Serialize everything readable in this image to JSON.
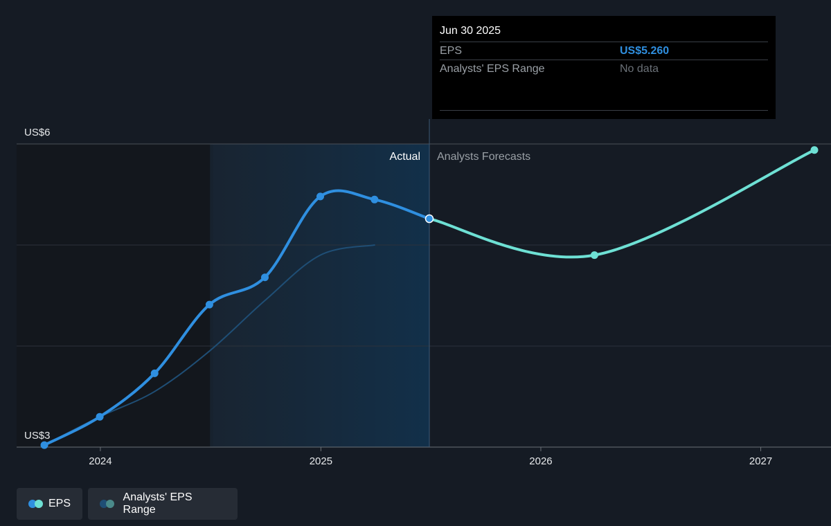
{
  "tooltip": {
    "date": "Jun 30 2025",
    "rows": [
      {
        "label": "EPS",
        "value": "US$5.260"
      },
      {
        "label": "Analysts' EPS Range",
        "value": "No data"
      }
    ]
  },
  "regions": {
    "actual_label": "Actual",
    "forecast_label": "Analysts Forecasts"
  },
  "legend": [
    {
      "label": "EPS",
      "colors": [
        "#2f8fe0",
        "#6ee0d4"
      ]
    },
    {
      "label": "Analysts' EPS Range",
      "colors": [
        "#1f4e75",
        "#4a8a8a"
      ]
    }
  ],
  "colors": {
    "eps_actual": "#2f8fe0",
    "eps_forecast": "#6ee0d4",
    "range_line": "#1f4e75",
    "background": "#151b24"
  },
  "chart_data": {
    "type": "line",
    "y_tick_labels": [
      "US$6",
      "US$3"
    ],
    "ylim": [
      3,
      6
    ],
    "xlim": [
      "2023-08-15",
      "2027-03-31"
    ],
    "x_tick_labels": [
      "2024",
      "2025",
      "2026",
      "2027"
    ],
    "x_ticks": [
      "2024-01-01",
      "2025-01-01",
      "2026-01-01",
      "2027-01-01"
    ],
    "grid": true,
    "highlight_from": "2024-07-01",
    "divider": "2025-06-30",
    "series": [
      {
        "name": "EPS",
        "style": "actual",
        "points": [
          {
            "x": "2023-09-30",
            "y": 3.02
          },
          {
            "x": "2023-12-31",
            "y": 3.3
          },
          {
            "x": "2024-03-31",
            "y": 3.73
          },
          {
            "x": "2024-06-30",
            "y": 4.41
          },
          {
            "x": "2024-09-30",
            "y": 4.68
          },
          {
            "x": "2024-12-31",
            "y": 5.48
          },
          {
            "x": "2025-03-31",
            "y": 5.45
          },
          {
            "x": "2025-06-30",
            "y": 5.26
          }
        ]
      },
      {
        "name": "EPS",
        "style": "forecast",
        "points": [
          {
            "x": "2025-06-30",
            "y": 5.26
          },
          {
            "x": "2026-03-31",
            "y": 4.9
          },
          {
            "x": "2027-03-31",
            "y": 5.94
          }
        ]
      },
      {
        "name": "Analysts' EPS Range",
        "style": "range",
        "points": [
          {
            "x": "2023-09-30",
            "y": 3.02
          },
          {
            "x": "2023-12-31",
            "y": 3.3
          },
          {
            "x": "2024-03-31",
            "y": 3.55
          },
          {
            "x": "2024-06-30",
            "y": 3.95
          },
          {
            "x": "2024-09-30",
            "y": 4.45
          },
          {
            "x": "2024-12-31",
            "y": 4.9
          },
          {
            "x": "2025-03-31",
            "y": 5.0
          }
        ]
      }
    ]
  }
}
